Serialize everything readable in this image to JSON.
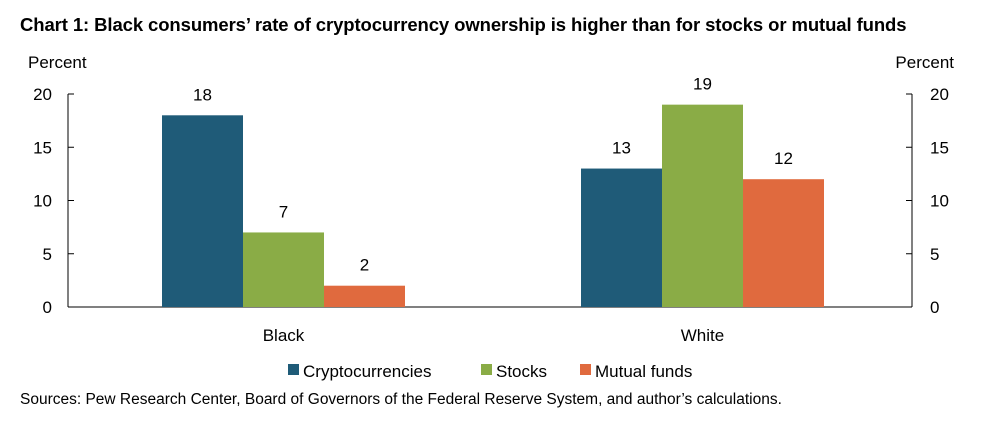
{
  "chart_data": {
    "type": "bar",
    "title": "Chart 1: Black consumers’ rate of cryptocurrency ownership is higher than for stocks or mutual funds",
    "ylabel_left": "Percent",
    "ylabel_right": "Percent",
    "ylim": [
      0,
      20
    ],
    "yticks": [
      0,
      5,
      10,
      15,
      20
    ],
    "categories": [
      "Black",
      "White"
    ],
    "series": [
      {
        "name": "Cryptocurrencies",
        "color": "#1f5b78",
        "values": [
          18,
          13
        ]
      },
      {
        "name": "Stocks",
        "color": "#8aac46",
        "values": [
          7,
          19
        ]
      },
      {
        "name": "Mutual funds",
        "color": "#e06a3e",
        "values": [
          2,
          12
        ]
      }
    ],
    "data_labels": [
      [
        "18",
        "13"
      ],
      [
        "7",
        "19"
      ],
      [
        "2",
        "12"
      ]
    ],
    "legend_position": "bottom",
    "grid": false,
    "source": "Sources: Pew Research Center, Board of Governors of the Federal Reserve System, and author’s calculations."
  }
}
